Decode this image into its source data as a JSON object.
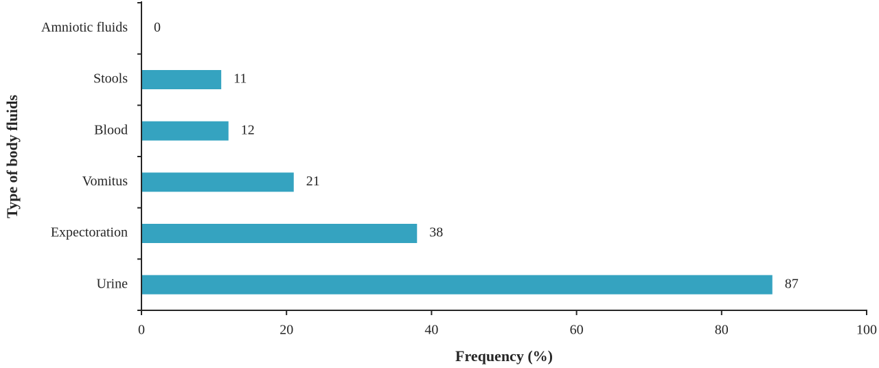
{
  "chart_data": {
    "type": "bar",
    "orientation": "horizontal",
    "categories": [
      "Amniotic fluids",
      "Stools",
      "Blood",
      "Vomitus",
      "Expectoration",
      "Urine"
    ],
    "values": [
      0,
      11,
      12,
      21,
      38,
      87
    ],
    "data_labels": [
      "0",
      "11",
      "12",
      "21",
      "38",
      "87"
    ],
    "xlabel": "Frequency (%)",
    "ylabel": "Type of body fluids",
    "xlim": [
      0,
      100
    ],
    "xticks": [
      "0",
      "20",
      "40",
      "60",
      "80",
      "100"
    ],
    "bar_color": "#35a3c0",
    "grid": false,
    "legend": "none"
  }
}
